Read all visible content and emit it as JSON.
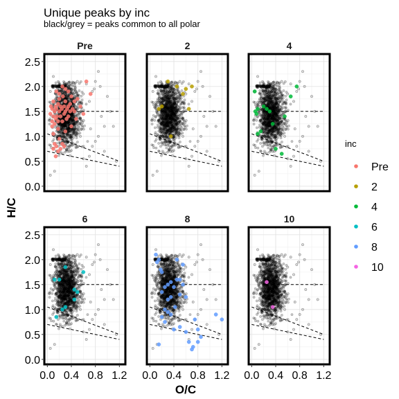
{
  "chart_data": {
    "type": "scatter",
    "title": "Unique peaks by inc",
    "subtitle": "black/grey = peaks common to all polar",
    "xlabel": "O/C",
    "ylabel": "H/C",
    "xlim": [
      -0.05,
      1.3
    ],
    "ylim": [
      -0.1,
      2.65
    ],
    "xticks": [
      "0.0",
      "0.4",
      "0.8",
      "1.2"
    ],
    "xtick_values": [
      0,
      0.4,
      0.8,
      1.2
    ],
    "yticks": [
      "0.0",
      "0.5",
      "1.0",
      "1.5",
      "2.0",
      "2.5"
    ],
    "ytick_values": [
      0,
      0.5,
      1.0,
      1.5,
      2.0,
      2.5
    ],
    "legend": {
      "title": "inc",
      "entries": [
        {
          "label": "Pre",
          "color": "#F8766D"
        },
        {
          "label": "2",
          "color": "#B79F00"
        },
        {
          "label": "4",
          "color": "#00BA38"
        },
        {
          "label": "6",
          "color": "#00BFC4"
        },
        {
          "label": "8",
          "color": "#619CFF"
        },
        {
          "label": "10",
          "color": "#F564E3"
        }
      ]
    },
    "reference_lines": [
      {
        "x": [
          0.33,
          1.2
        ],
        "y": [
          1.5,
          1.5
        ]
      },
      {
        "x": [
          0.0,
          1.2
        ],
        "y": [
          1.05,
          0.5
        ]
      },
      {
        "x": [
          0.0,
          1.2
        ],
        "y": [
          0.7,
          0.4
        ]
      }
    ],
    "common_peaks": {
      "color": "#000000",
      "cluster_seed": 7,
      "cluster_count": 1300,
      "outliers": [
        [
          0.05,
          0.22
        ],
        [
          0.12,
          0.3
        ],
        [
          0.05,
          1.9
        ],
        [
          0.1,
          2.2
        ],
        [
          0.5,
          2.1
        ],
        [
          0.6,
          1.85
        ],
        [
          0.65,
          2.05
        ],
        [
          0.7,
          1.7
        ],
        [
          0.75,
          1.9
        ],
        [
          0.78,
          1.95
        ],
        [
          0.8,
          2.1
        ],
        [
          0.85,
          2.3
        ],
        [
          0.88,
          2.0
        ],
        [
          0.9,
          1.4
        ],
        [
          0.95,
          1.2
        ],
        [
          1.0,
          1.8
        ],
        [
          1.05,
          1.5
        ],
        [
          1.1,
          1.2
        ],
        [
          0.7,
          0.6
        ],
        [
          0.75,
          0.8
        ],
        [
          0.8,
          0.9
        ],
        [
          0.85,
          1.0
        ],
        [
          0.65,
          0.4
        ],
        [
          0.6,
          0.55
        ],
        [
          0.55,
          1.0
        ],
        [
          0.72,
          1.15
        ],
        [
          1.15,
          0.5
        ],
        [
          0.95,
          0.7
        ]
      ]
    },
    "facets": [
      {
        "label": "Pre",
        "color": "#F8766D",
        "points": [
          [
            0.05,
            1.45
          ],
          [
            0.06,
            1.6
          ],
          [
            0.08,
            1.3
          ],
          [
            0.08,
            1.55
          ],
          [
            0.1,
            1.4
          ],
          [
            0.1,
            1.7
          ],
          [
            0.12,
            1.5
          ],
          [
            0.12,
            1.25
          ],
          [
            0.14,
            1.6
          ],
          [
            0.14,
            1.35
          ],
          [
            0.15,
            1.55
          ],
          [
            0.16,
            1.4
          ],
          [
            0.18,
            1.65
          ],
          [
            0.18,
            1.3
          ],
          [
            0.2,
            1.5
          ],
          [
            0.2,
            1.75
          ],
          [
            0.22,
            1.4
          ],
          [
            0.22,
            1.6
          ],
          [
            0.24,
            1.55
          ],
          [
            0.25,
            1.3
          ],
          [
            0.26,
            1.8
          ],
          [
            0.28,
            1.45
          ],
          [
            0.28,
            1.6
          ],
          [
            0.3,
            1.5
          ],
          [
            0.3,
            1.7
          ],
          [
            0.32,
            1.35
          ],
          [
            0.33,
            1.55
          ],
          [
            0.35,
            1.6
          ],
          [
            0.35,
            1.4
          ],
          [
            0.38,
            1.65
          ],
          [
            0.38,
            1.5
          ],
          [
            0.4,
            1.8
          ],
          [
            0.42,
            1.55
          ],
          [
            0.45,
            1.7
          ],
          [
            0.45,
            1.5
          ],
          [
            0.5,
            1.75
          ],
          [
            0.1,
            0.75
          ],
          [
            0.12,
            0.85
          ],
          [
            0.14,
            0.6
          ],
          [
            0.15,
            0.8
          ],
          [
            0.18,
            0.7
          ],
          [
            0.2,
            0.95
          ],
          [
            0.22,
            0.75
          ],
          [
            0.25,
            0.85
          ],
          [
            0.28,
            0.8
          ],
          [
            0.3,
            1.1
          ],
          [
            0.1,
            1.05
          ],
          [
            0.35,
            1.9
          ],
          [
            0.3,
            1.95
          ],
          [
            0.25,
            2.0
          ],
          [
            0.15,
            1.9
          ],
          [
            0.2,
            1.85
          ],
          [
            0.55,
            1.6
          ],
          [
            0.6,
            1.45
          ],
          [
            0.48,
            1.35
          ],
          [
            0.65,
            2.1
          ],
          [
            0.72,
            1.85
          ],
          [
            0.4,
            1.2
          ],
          [
            0.18,
            1.15
          ],
          [
            0.08,
            1.2
          ]
        ]
      },
      {
        "label": "2",
        "color": "#B79F00",
        "points": [
          [
            0.15,
            1.55
          ],
          [
            0.2,
            1.6
          ],
          [
            0.3,
            2.1
          ],
          [
            0.45,
            2.0
          ],
          [
            0.55,
            1.85
          ],
          [
            0.7,
            2.0
          ],
          [
            0.6,
            1.95
          ],
          [
            0.65,
            1.55
          ],
          [
            0.35,
            1.0
          ]
        ]
      },
      {
        "label": "4",
        "color": "#00BA38",
        "points": [
          [
            0.05,
            1.9
          ],
          [
            0.06,
            1.5
          ],
          [
            0.08,
            1.45
          ],
          [
            0.1,
            1.55
          ],
          [
            0.1,
            1.05
          ],
          [
            0.15,
            1.1
          ],
          [
            0.2,
            1.6
          ],
          [
            0.25,
            1.55
          ],
          [
            0.3,
            1.5
          ],
          [
            0.4,
            0.75
          ],
          [
            0.5,
            0.65
          ],
          [
            0.55,
            1.4
          ],
          [
            0.65,
            1.8
          ],
          [
            0.75,
            2.0
          ],
          [
            0.35,
            1.25
          ]
        ]
      },
      {
        "label": "6",
        "color": "#00BFC4",
        "points": [
          [
            0.12,
            1.6
          ],
          [
            0.2,
            1.6
          ],
          [
            0.25,
            1.0
          ],
          [
            0.3,
            1.05
          ],
          [
            0.3,
            1.85
          ],
          [
            0.45,
            1.4
          ],
          [
            0.5,
            1.35
          ],
          [
            0.6,
            1.75
          ],
          [
            0.15,
            0.85
          ],
          [
            0.45,
            1.2
          ]
        ]
      },
      {
        "label": "8",
        "color": "#619CFF",
        "points": [
          [
            0.1,
            2.1
          ],
          [
            0.12,
            1.95
          ],
          [
            0.15,
            2.0
          ],
          [
            0.18,
            1.8
          ],
          [
            0.2,
            1.75
          ],
          [
            0.25,
            1.45
          ],
          [
            0.3,
            1.5
          ],
          [
            0.35,
            1.55
          ],
          [
            0.4,
            1.45
          ],
          [
            0.45,
            1.6
          ],
          [
            0.5,
            1.6
          ],
          [
            0.5,
            1.3
          ],
          [
            0.55,
            1.5
          ],
          [
            0.3,
            1.2
          ],
          [
            0.25,
            1.0
          ],
          [
            0.3,
            0.95
          ],
          [
            0.35,
            0.9
          ],
          [
            0.2,
            0.85
          ],
          [
            0.25,
            0.75
          ],
          [
            0.4,
            0.6
          ],
          [
            0.5,
            0.65
          ],
          [
            0.6,
            0.55
          ],
          [
            0.65,
            0.35
          ],
          [
            0.7,
            0.2
          ],
          [
            0.72,
            0.25
          ],
          [
            0.8,
            0.6
          ],
          [
            0.75,
            0.8
          ],
          [
            0.85,
            0.45
          ],
          [
            0.8,
            0.35
          ],
          [
            1.1,
            0.9
          ],
          [
            1.2,
            0.8
          ],
          [
            0.6,
            1.25
          ],
          [
            0.42,
            1.05
          ],
          [
            0.15,
            0.3
          ],
          [
            0.2,
            1.35
          ],
          [
            0.35,
            1.25
          ],
          [
            0.45,
            2.0
          ],
          [
            0.55,
            1.9
          ]
        ]
      },
      {
        "label": "10",
        "color": "#F564E3",
        "points": [
          [
            0.25,
            1.55
          ],
          [
            0.35,
            1.05
          ]
        ]
      }
    ]
  }
}
